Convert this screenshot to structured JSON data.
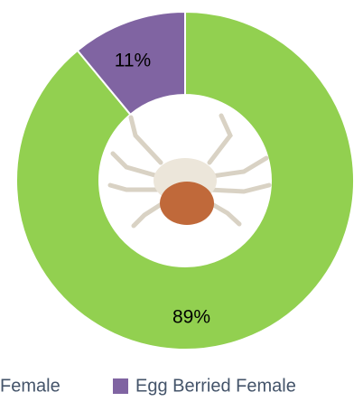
{
  "chart_data": {
    "type": "pie",
    "categories": [
      "Female",
      "Egg Berried Female"
    ],
    "values": [
      89,
      11
    ],
    "value_labels": [
      "89%",
      "11%"
    ],
    "colors": [
      "#92d050",
      "#8064a2"
    ],
    "legend": "bottom"
  }
}
